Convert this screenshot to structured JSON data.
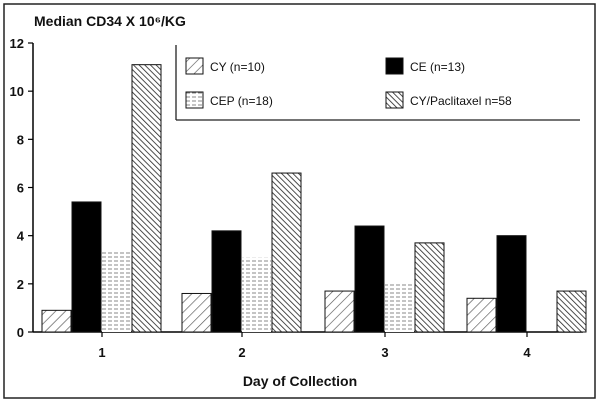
{
  "chart_data": {
    "type": "bar",
    "title": "Median CD34 X 10⁶/KG",
    "xlabel": "Day of Collection",
    "ylabel": "",
    "ylim": [
      0,
      12
    ],
    "yticks": [
      0,
      2,
      4,
      6,
      8,
      10,
      12
    ],
    "categories": [
      "1",
      "2",
      "3",
      "4"
    ],
    "grid": false,
    "legend_position": "top-right",
    "series": [
      {
        "name": "CY (n=10)",
        "values": [
          0.9,
          1.6,
          1.7,
          1.4
        ],
        "pattern": "diagonal-light",
        "color": "#555555"
      },
      {
        "name": "CE (n=13)",
        "values": [
          5.4,
          4.2,
          4.4,
          4.0
        ],
        "pattern": "solid",
        "color": "#000000"
      },
      {
        "name": "CEP (n=18)",
        "values": [
          3.4,
          3.1,
          2.0,
          null
        ],
        "pattern": "horizontal",
        "color": "#777777"
      },
      {
        "name": "CY/Paclitaxel n=58",
        "values": [
          11.1,
          6.6,
          3.7,
          1.7
        ],
        "pattern": "diagonal-dense",
        "color": "#222222"
      }
    ]
  }
}
